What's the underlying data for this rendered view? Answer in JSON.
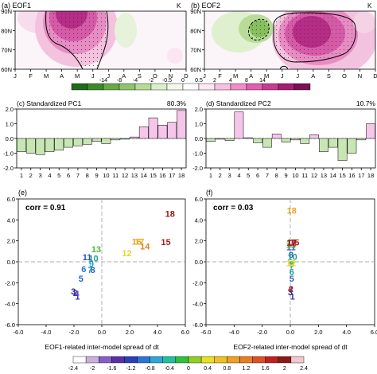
{
  "chart_data": [
    {
      "type": "heatmap",
      "panel_label": "(a) EOF1",
      "unit_label": "K",
      "x_tick_labels": [
        "J",
        "F",
        "M",
        "A",
        "M",
        "J",
        "J",
        "A",
        "S",
        "O",
        "N",
        "D"
      ],
      "y_tick_labels": [
        "60N",
        "70N",
        "80N",
        "90N"
      ],
      "description_of_field": "positive loading centred on May-June north of ~65N with stippling"
    },
    {
      "type": "heatmap",
      "panel_label": "(b) EOF2",
      "unit_label": "K",
      "x_tick_labels": [
        "J",
        "F",
        "M",
        "A",
        "M",
        "J",
        "J",
        "A",
        "S",
        "O",
        "N",
        "D"
      ],
      "y_tick_labels": [
        "60N",
        "70N",
        "80N",
        "90N"
      ]
    },
    {
      "type": "colorbar",
      "tick_labels": [
        "-14",
        "-8",
        "-4",
        "-2",
        "-0.5",
        "0",
        "0.5",
        "2",
        "4",
        "8",
        "14"
      ],
      "colors": [
        "#1f6b1a",
        "#3e8a2b",
        "#66aa45",
        "#8fc46c",
        "#b7da98",
        "#dbeecb",
        "#f2f7ec",
        "#ffffff",
        "#fde8f4",
        "#f7bfe0",
        "#ee8dc8",
        "#e060ae",
        "#c93b92",
        "#a61e73",
        "#7d0f55"
      ]
    },
    {
      "type": "bar",
      "panel_label": "(c) Standardized PC1",
      "variance_label": "80.3%",
      "categories": [
        "1",
        "2",
        "3",
        "4",
        "5",
        "6",
        "7",
        "8",
        "9",
        "10",
        "11",
        "12",
        "13",
        "14",
        "15",
        "16",
        "17",
        "18"
      ],
      "values": [
        -0.9,
        -1.0,
        -1.1,
        -0.9,
        -0.8,
        -0.6,
        -0.5,
        -0.4,
        -0.2,
        -0.35,
        -0.1,
        -0.05,
        0.1,
        0.8,
        1.4,
        0.9,
        1.1,
        1.9
      ],
      "ylim": [
        -2.0,
        2.0
      ],
      "y_ticks": [
        "-2.0",
        "-1.0",
        "0.0",
        "1.0",
        "2.0"
      ]
    },
    {
      "type": "bar",
      "panel_label": "(d) Standardized PC2",
      "variance_label": "10.7%",
      "categories": [
        "1",
        "2",
        "3",
        "4",
        "5",
        "6",
        "7",
        "8",
        "9",
        "10",
        "11",
        "12",
        "13",
        "14",
        "15",
        "16",
        "17",
        "18"
      ],
      "values": [
        -0.2,
        -0.05,
        -0.15,
        1.8,
        0.05,
        -0.3,
        -0.6,
        0.3,
        -0.25,
        -0.1,
        -0.35,
        0.25,
        -0.9,
        -0.6,
        -1.5,
        -1.0,
        -0.1,
        1.0
      ],
      "ylim": [
        -2.0,
        2.0
      ],
      "y_ticks": [
        "-2.0",
        "-1.0",
        "0.0",
        "1.0",
        "2.0"
      ]
    },
    {
      "type": "scatter",
      "panel_label": "(e)",
      "annotation": "corr = 0.91",
      "xlabel": "EOF1-related inter-model spread of dt",
      "xlim": [
        -6.0,
        6.0
      ],
      "ylim": [
        -6.0,
        6.0
      ],
      "x_ticks": [
        "-6.0",
        "-4.0",
        "-2.0",
        "0.0",
        "2.0",
        "4.0",
        "6.0"
      ],
      "y_ticks": [
        "-6.0",
        "-4.0",
        "-2.0",
        "0.0",
        "2.0",
        "4.0",
        "6.0"
      ],
      "points": [
        {
          "label": "1",
          "x": -1.75,
          "y": -3.3,
          "color": "#3a2fa8"
        },
        {
          "label": "2",
          "x": -1.9,
          "y": -2.95,
          "color": "#3a2fa8"
        },
        {
          "label": "3",
          "x": -2.05,
          "y": -2.8,
          "color": "#2a2a80"
        },
        {
          "label": "4",
          "x": -1.8,
          "y": -3.05,
          "color": "#5b3fbf"
        },
        {
          "label": "5",
          "x": -1.5,
          "y": -1.6,
          "color": "#2a63c8"
        },
        {
          "label": "6",
          "x": -1.3,
          "y": -0.7,
          "color": "#2a74d6"
        },
        {
          "label": "7",
          "x": -0.85,
          "y": -0.75,
          "color": "#2a9cc9"
        },
        {
          "label": "8",
          "x": -0.65,
          "y": -0.75,
          "color": "#2a5fa8"
        },
        {
          "label": "9",
          "x": -0.75,
          "y": -0.2,
          "color": "#1fa3b8"
        },
        {
          "label": "10",
          "x": -0.6,
          "y": 0.35,
          "color": "#1aa08a"
        },
        {
          "label": "11",
          "x": -1.05,
          "y": 0.45,
          "color": "#2a52c8"
        },
        {
          "label": "12",
          "x": 1.8,
          "y": 0.85,
          "color": "#f0d020"
        },
        {
          "label": "13",
          "x": -0.4,
          "y": 1.2,
          "color": "#40c030"
        },
        {
          "label": "14",
          "x": 3.1,
          "y": 1.5,
          "color": "#e0801a"
        },
        {
          "label": "15",
          "x": 4.6,
          "y": 1.9,
          "color": "#a82018"
        },
        {
          "label": "16",
          "x": 2.5,
          "y": 1.95,
          "color": "#f0a020"
        },
        {
          "label": "17",
          "x": 2.7,
          "y": 1.95,
          "color": "#e8b020"
        },
        {
          "label": "18",
          "x": 4.9,
          "y": 4.6,
          "color": "#8a1a14"
        }
      ]
    },
    {
      "type": "scatter",
      "panel_label": "(f)",
      "annotation": "corr = 0.03",
      "xlabel": "EOF2-related inter-model spread of dt",
      "xlim": [
        -6.0,
        6.0
      ],
      "ylim": [
        -6.0,
        6.0
      ],
      "x_ticks": [
        "-6.0",
        "-4.0",
        "-2.0",
        "0.0",
        "2.0",
        "4.0",
        "6.0"
      ],
      "y_ticks": [
        "-6.0",
        "-4.0",
        "-2.0",
        "0.0",
        "2.0",
        "4.0",
        "6.0"
      ],
      "points": [
        {
          "label": "1",
          "x": 0.15,
          "y": -3.3,
          "color": "#3a2fa8"
        },
        {
          "label": "2",
          "x": 0.05,
          "y": -2.6,
          "color": "#3a2fa8"
        },
        {
          "label": "3",
          "x": 0.0,
          "y": -2.9,
          "color": "#2a2a80"
        },
        {
          "label": "4",
          "x": 0.0,
          "y": -2.6,
          "color": "#c02020"
        },
        {
          "label": "5",
          "x": 0.1,
          "y": -1.6,
          "color": "#2a63c8"
        },
        {
          "label": "6",
          "x": 0.1,
          "y": -0.95,
          "color": "#1aa08a"
        },
        {
          "label": "7",
          "x": 0.1,
          "y": -0.35,
          "color": "#2a9cc9"
        },
        {
          "label": "8",
          "x": 0.05,
          "y": 0.7,
          "color": "#2a5fa8"
        },
        {
          "label": "9",
          "x": 0.1,
          "y": -0.2,
          "color": "#40c030"
        },
        {
          "label": "10",
          "x": 0.15,
          "y": 0.5,
          "color": "#1aa08a"
        },
        {
          "label": "11",
          "x": 0.05,
          "y": 1.4,
          "color": "#2a52c8"
        },
        {
          "label": "12",
          "x": 0.05,
          "y": -0.1,
          "color": "#f0d020"
        },
        {
          "label": "13",
          "x": 0.05,
          "y": 1.6,
          "color": "#40c030"
        },
        {
          "label": "14",
          "x": 0.1,
          "y": 1.85,
          "color": "#e0801a"
        },
        {
          "label": "15",
          "x": 0.3,
          "y": 1.85,
          "color": "#a82018"
        },
        {
          "label": "16",
          "x": 0.1,
          "y": 1.8,
          "color": "#c03060"
        },
        {
          "label": "17",
          "x": 0.1,
          "y": 1.85,
          "color": "#8a1a14"
        },
        {
          "label": "18",
          "x": 0.1,
          "y": 4.9,
          "color": "#f0a020"
        }
      ]
    },
    {
      "type": "colorbar",
      "tick_labels": [
        "-2.4",
        "-2",
        "-1.6",
        "-1.2",
        "-0.8",
        "-0.4",
        "0",
        "0.4",
        "0.8",
        "1.2",
        "1.6",
        "2",
        "2.4"
      ],
      "colors": [
        "#ffffff",
        "#c8b0e0",
        "#8a5cc8",
        "#5a2fa8",
        "#2a3fb8",
        "#2a74d6",
        "#2aa8d8",
        "#20c0a0",
        "#30c040",
        "#90d020",
        "#e8e020",
        "#f0c020",
        "#f0a020",
        "#e88020",
        "#e05020",
        "#c02020",
        "#8a1a14",
        "#f0c8d0"
      ]
    }
  ]
}
